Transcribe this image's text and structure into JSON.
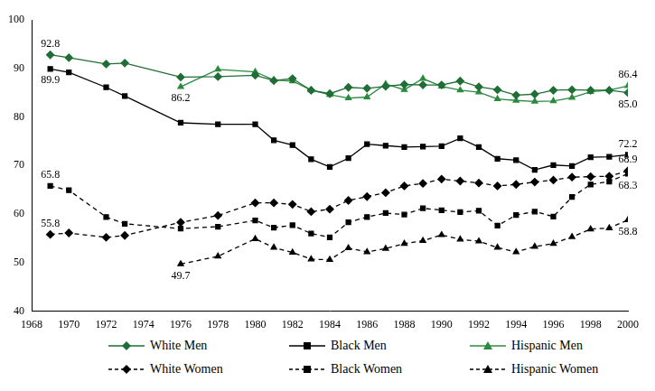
{
  "chart_data": {
    "type": "line",
    "x": [
      1969,
      1970,
      1972,
      1973,
      1976,
      1978,
      1980,
      1981,
      1982,
      1983,
      1984,
      1985,
      1986,
      1987,
      1988,
      1989,
      1990,
      1991,
      1992,
      1993,
      1994,
      1995,
      1996,
      1997,
      1998,
      1999,
      2000
    ],
    "series": [
      {
        "name": "White Men",
        "color": "#1f6e35",
        "marker": "diamond",
        "line_style": "solid",
        "values": [
          92.8,
          92.2,
          90.9,
          91.1,
          88.2,
          88.3,
          88.6,
          87.5,
          87.9,
          85.5,
          84.8,
          86.1,
          85.9,
          86.3,
          86.7,
          86.6,
          86.6,
          87.4,
          86.2,
          85.6,
          84.5,
          84.7,
          85.5,
          85.6,
          85.5,
          85.5,
          85.0
        ]
      },
      {
        "name": "Black Men",
        "color": "#000000",
        "marker": "square",
        "line_style": "solid",
        "values": [
          89.9,
          89.2,
          86.1,
          84.3,
          78.8,
          78.5,
          78.5,
          75.2,
          74.2,
          71.3,
          69.7,
          71.5,
          74.4,
          74.1,
          73.8,
          73.9,
          74.0,
          75.6,
          73.8,
          71.4,
          71.1,
          69.1,
          70.1,
          69.9,
          71.7,
          71.8,
          72.2
        ]
      },
      {
        "name": "Hispanic Men",
        "color": "#2a8a3e",
        "marker": "triangle",
        "line_style": "solid",
        "values": [
          null,
          null,
          null,
          null,
          86.2,
          89.8,
          89.3,
          87.6,
          87.4,
          85.5,
          84.6,
          83.9,
          84.1,
          86.8,
          85.6,
          87.9,
          86.3,
          85.5,
          85.1,
          83.7,
          83.4,
          83.2,
          83.3,
          84.0,
          85.2,
          85.5,
          86.4
        ]
      },
      {
        "name": "White Women",
        "color": "#000000",
        "marker": "diamond",
        "line_style": "dashed",
        "values": [
          55.8,
          56.1,
          55.2,
          55.6,
          58.3,
          59.7,
          62.3,
          62.3,
          62.0,
          60.5,
          61.0,
          62.8,
          63.6,
          64.4,
          65.8,
          66.3,
          67.2,
          66.8,
          66.4,
          65.8,
          66.1,
          66.6,
          67.0,
          67.6,
          67.7,
          67.8,
          68.9
        ]
      },
      {
        "name": "Black Women",
        "color": "#000000",
        "marker": "square",
        "line_style": "dashed",
        "values": [
          65.8,
          64.9,
          59.4,
          58.0,
          57.0,
          57.4,
          58.7,
          57.2,
          57.7,
          56.0,
          55.2,
          58.3,
          59.4,
          60.2,
          59.9,
          61.2,
          60.8,
          60.4,
          60.7,
          57.6,
          59.8,
          60.5,
          59.5,
          63.5,
          66.1,
          66.7,
          68.3
        ]
      },
      {
        "name": "Hispanic Women",
        "color": "#000000",
        "marker": "triangle",
        "line_style": "dashed",
        "values": [
          null,
          null,
          null,
          null,
          49.7,
          51.3,
          54.9,
          53.1,
          52.1,
          50.7,
          50.6,
          53.0,
          52.2,
          52.9,
          53.9,
          54.5,
          55.7,
          54.8,
          54.4,
          53.1,
          52.2,
          53.3,
          53.9,
          55.3,
          56.9,
          57.1,
          58.8
        ]
      }
    ],
    "xlim": [
      1968,
      2000
    ],
    "xticks": [
      1968,
      1970,
      1972,
      1974,
      1976,
      1978,
      1980,
      1982,
      1984,
      1986,
      1988,
      1990,
      1992,
      1994,
      1996,
      1998,
      2000
    ],
    "ylim": [
      40,
      100
    ],
    "yticks": [
      40,
      50,
      60,
      70,
      80,
      90,
      100
    ],
    "grid": false,
    "legend": "bottom",
    "annotations": [
      {
        "x": 1969,
        "y": 92.8,
        "text": "92.8",
        "position": "above"
      },
      {
        "x": 1969,
        "y": 89.9,
        "text": "89.9",
        "position": "below"
      },
      {
        "x": 1976,
        "y": 86.2,
        "text": "86.2",
        "position": "below"
      },
      {
        "x": 1969,
        "y": 65.8,
        "text": "65.8",
        "position": "above"
      },
      {
        "x": 1969,
        "y": 55.8,
        "text": "55.8",
        "position": "above"
      },
      {
        "x": 1976,
        "y": 49.7,
        "text": "49.7",
        "position": "below"
      },
      {
        "x": 2000,
        "y": 86.4,
        "text": "86.4",
        "position": "above"
      },
      {
        "x": 2000,
        "y": 85.0,
        "text": "85.0",
        "position": "below"
      },
      {
        "x": 2000,
        "y": 72.2,
        "text": "72.2",
        "position": "above"
      },
      {
        "x": 2000,
        "y": 68.9,
        "text": "68.9",
        "position": "above"
      },
      {
        "x": 2000,
        "y": 68.3,
        "text": "68.3",
        "position": "below"
      },
      {
        "x": 2000,
        "y": 58.8,
        "text": "58.8",
        "position": "below"
      }
    ]
  }
}
